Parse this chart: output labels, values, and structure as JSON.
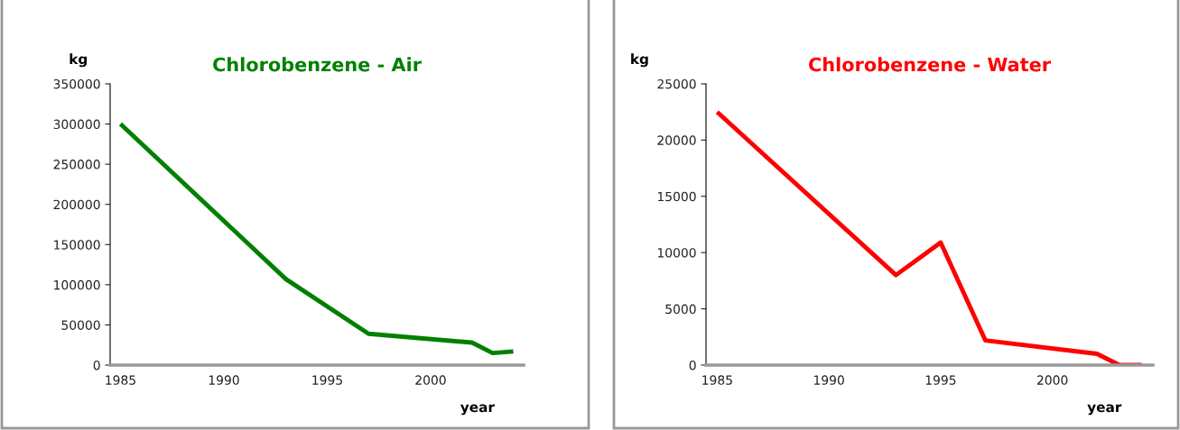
{
  "chart_data": [
    {
      "type": "line",
      "title": "Chlorobenzene - Air",
      "xlabel": "year",
      "ylabel": "kg",
      "x": [
        1985,
        1993,
        1997,
        2002,
        2003,
        2004
      ],
      "series": [
        {
          "color": "#008000",
          "values": [
            300000,
            107000,
            39000,
            28000,
            15000,
            17000
          ]
        }
      ],
      "xlim": [
        1984.5,
        2004.5
      ],
      "xticks": [
        1985,
        1990,
        1995,
        2000
      ],
      "ylim": [
        0,
        350000
      ],
      "yticks": [
        0,
        50000,
        100000,
        150000,
        200000,
        250000,
        300000,
        350000
      ],
      "grid": false,
      "legend": false
    },
    {
      "type": "line",
      "title": "Chlorobenzene - Water",
      "xlabel": "year",
      "ylabel": "kg",
      "x": [
        1985,
        1993,
        1995,
        1997,
        2002,
        2003,
        2004
      ],
      "series": [
        {
          "color": "#ff0000",
          "values": [
            22500,
            8000,
            10900,
            2200,
            1000,
            0,
            0
          ]
        }
      ],
      "xlim": [
        1984.5,
        2004.5
      ],
      "xticks": [
        1985,
        1990,
        1995,
        2000
      ],
      "ylim": [
        0,
        25000
      ],
      "yticks": [
        0,
        5000,
        10000,
        15000,
        20000,
        25000
      ],
      "grid": false,
      "legend": false
    }
  ]
}
